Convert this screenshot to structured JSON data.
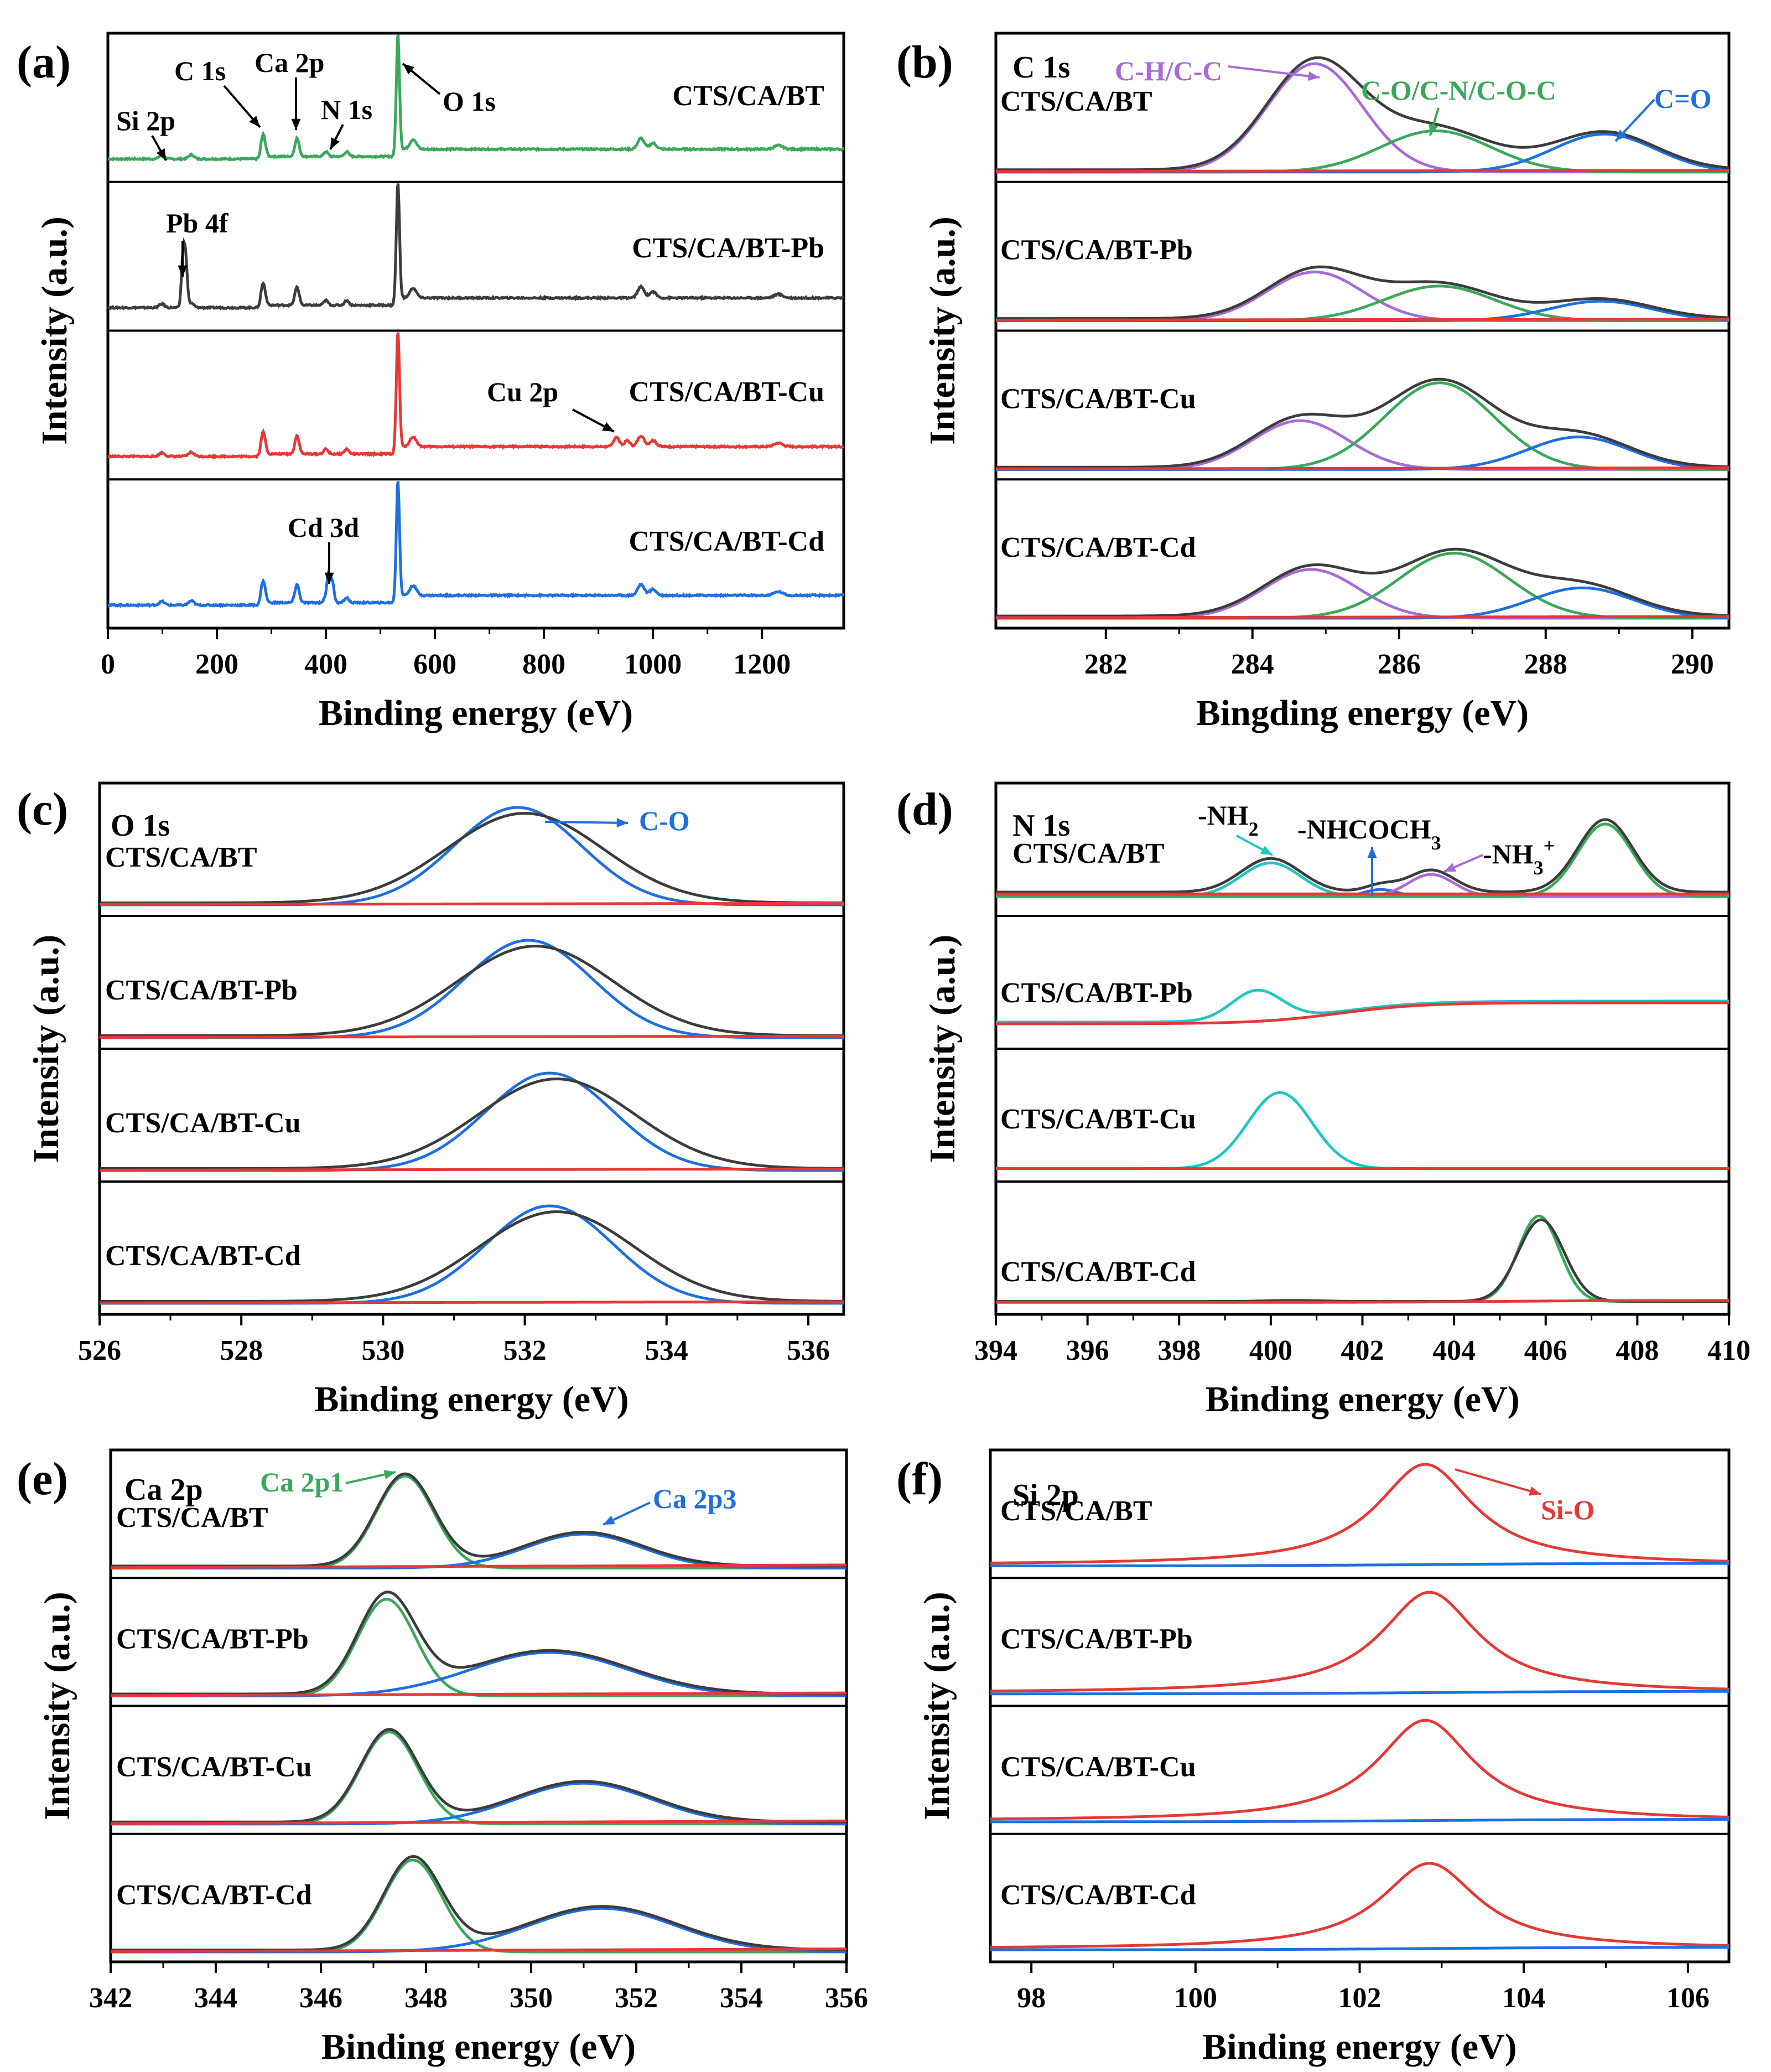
{
  "figure": {
    "colors": {
      "black": "#3c3c3c",
      "green": "#3aa85a",
      "red": "#e53935",
      "blue": "#1e6fe0",
      "purple": "#a86ad8",
      "cyan": "#22c4c4",
      "envelope": "#3c3c3c"
    }
  },
  "chart_data": [
    {
      "id": "a",
      "type": "line",
      "panel_label": "(a)",
      "xlabel": "Binding energy (eV)",
      "ylabel": "Intensity (a.u.)",
      "xlim": [
        0,
        1350
      ],
      "xticks": [
        0,
        200,
        400,
        600,
        800,
        1000,
        1200
      ],
      "series": [
        {
          "name": "CTS/CA/BT",
          "color": "#3aa85a"
        },
        {
          "name": "CTS/CA/BT-Pb",
          "color": "#3c3c3c"
        },
        {
          "name": "CTS/CA/BT-Cu",
          "color": "#e53935"
        },
        {
          "name": "CTS/CA/BT-Cd",
          "color": "#1e6fe0"
        }
      ],
      "annotations": [
        "Si 2p",
        "C 1s",
        "Ca 2p",
        "N 1s",
        "O 1s",
        "Pb 4f",
        "Cu 2p",
        "Cd 3d"
      ]
    },
    {
      "id": "b",
      "type": "line",
      "panel_label": "(b)",
      "element_label": "C 1s",
      "xlabel": "Bingding energy (eV)",
      "ylabel": "Intensity (a.u.)",
      "xlim": [
        280.5,
        290.5
      ],
      "xticks": [
        282,
        284,
        286,
        288,
        290
      ],
      "samples": [
        "CTS/CA/BT",
        "CTS/CA/BT-Pb",
        "CTS/CA/BT-Cu",
        "CTS/CA/BT-Cd"
      ],
      "components": [
        {
          "name": "C-H/C-C",
          "color": "#a86ad8",
          "centers": [
            284.85,
            284.85,
            284.65,
            284.8
          ],
          "amplitudes": [
            1.0,
            0.45,
            0.45,
            0.45
          ]
        },
        {
          "name": "C-O/C-N/C-O-C",
          "color": "#3aa85a",
          "centers": [
            286.5,
            286.55,
            286.55,
            286.75
          ],
          "amplitudes": [
            0.38,
            0.32,
            0.8,
            0.6
          ]
        },
        {
          "name": "C=O",
          "color": "#1e6fe0",
          "centers": [
            288.8,
            288.75,
            288.45,
            288.5
          ],
          "amplitudes": [
            0.35,
            0.18,
            0.3,
            0.28
          ]
        }
      ]
    },
    {
      "id": "c",
      "type": "line",
      "panel_label": "(c)",
      "element_label": "O 1s",
      "xlabel": "Binding energy (eV)",
      "ylabel": "Intensity (a.u.)",
      "xlim": [
        526,
        536.5
      ],
      "xticks": [
        526,
        528,
        530,
        532,
        534,
        536
      ],
      "samples": [
        "CTS/CA/BT",
        "CTS/CA/BT-Pb",
        "CTS/CA/BT-Cu",
        "CTS/CA/BT-Cd"
      ],
      "components": [
        {
          "name": "C-O",
          "color": "#1e6fe0",
          "centers": [
            531.9,
            532.05,
            532.35,
            532.35
          ]
        }
      ]
    },
    {
      "id": "d",
      "type": "line",
      "panel_label": "(d)",
      "element_label": "N 1s",
      "xlabel": "Binding energy (eV)",
      "ylabel": "Intensity (a.u.)",
      "xlim": [
        394,
        410
      ],
      "xticks": [
        394,
        396,
        398,
        400,
        402,
        404,
        406,
        408,
        410
      ],
      "samples": [
        "CTS/CA/BT",
        "CTS/CA/BT-Pb",
        "CTS/CA/BT-Cu",
        "CTS/CA/BT-Cd"
      ],
      "components": [
        {
          "name": "-NH",
          "sub": "2",
          "color": "#22c4c4",
          "center": 400.0
        },
        {
          "name": "-NHCOCH",
          "sub": "3",
          "color": "#1e6fe0",
          "center": 402.4
        },
        {
          "name": "-NH",
          "sub": "3",
          "sup": "+",
          "color": "#a86ad8",
          "center": 403.5
        }
      ],
      "peaks": {
        "BT": [
          400.0,
          407.3
        ],
        "Pb": [
          399.7
        ],
        "Cu": [
          400.2
        ],
        "Cd": [
          405.85
        ]
      }
    },
    {
      "id": "e",
      "type": "line",
      "panel_label": "(e)",
      "element_label": "Ca 2p",
      "xlabel": "Binding energy (eV)",
      "ylabel": "Intensity (a.u.)",
      "xlim": [
        342,
        356
      ],
      "xticks": [
        342,
        344,
        346,
        348,
        350,
        352,
        354,
        356
      ],
      "samples": [
        "CTS/CA/BT",
        "CTS/CA/BT-Pb",
        "CTS/CA/BT-Cu",
        "CTS/CA/BT-Cd"
      ],
      "components": [
        {
          "name": "Ca 2p1",
          "color": "#3aa85a",
          "centers": [
            347.6,
            347.25,
            347.3,
            347.75
          ]
        },
        {
          "name": "Ca 2p3",
          "color": "#1e6fe0",
          "centers": [
            351.0,
            350.35,
            351.0,
            351.35
          ]
        }
      ]
    },
    {
      "id": "f",
      "type": "line",
      "panel_label": "(f)",
      "element_label": "Si 2p",
      "xlabel": "Binding energy (eV)",
      "ylabel": "Intensity (a.u.)",
      "xlim": [
        97.5,
        106.5
      ],
      "xticks": [
        98,
        100,
        102,
        104,
        106
      ],
      "samples": [
        "CTS/CA/BT",
        "CTS/CA/BT-Pb",
        "CTS/CA/BT-Cu",
        "CTS/CA/BT-Cd"
      ],
      "components": [
        {
          "name": "Si-O",
          "color": "#e53935",
          "centers": [
            102.8,
            102.85,
            102.8,
            102.85
          ]
        }
      ]
    }
  ]
}
